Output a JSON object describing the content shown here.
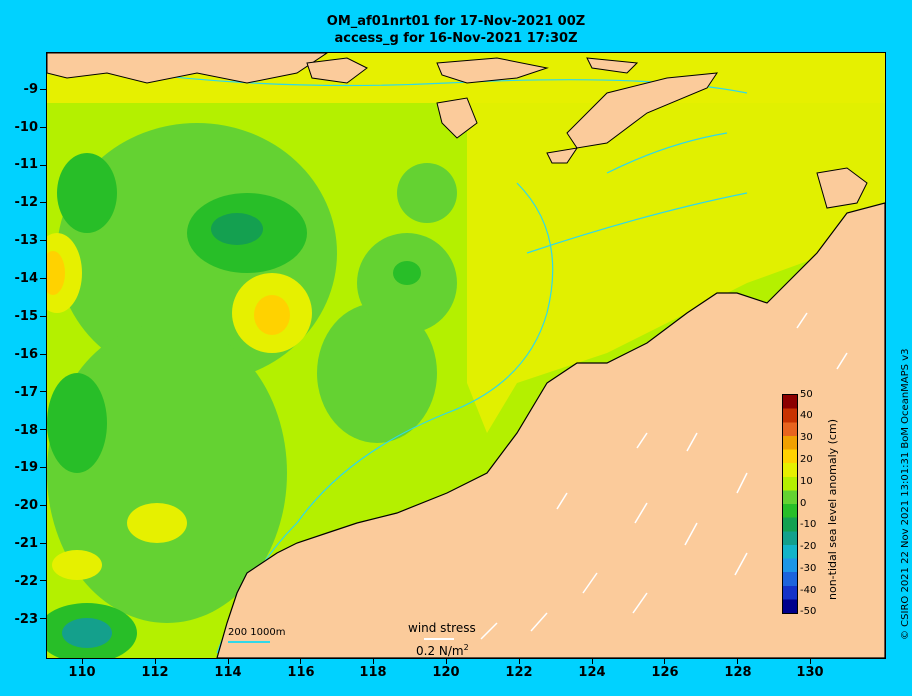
{
  "title_line1": "OM_af01nrt01 for 17-Nov-2021 00Z",
  "title_line2": "access_g for 16-Nov-2021 17:30Z",
  "credit": "© CSIRO 2021  22 Nov 2021 13:01:31 BoM OceanMAPS v3",
  "colorbar": {
    "label": "non-tidal sea level anomaly (cm)",
    "ticks": [
      "50",
      "40",
      "30",
      "20",
      "10",
      "0",
      "-10",
      "-20",
      "-30",
      "-40",
      "-50"
    ],
    "colors": [
      "#8b0000",
      "#c83200",
      "#e8641e",
      "#f0a000",
      "#ffd200",
      "#e6f000",
      "#b4f000",
      "#64d232",
      "#28be28",
      "#14a050",
      "#14a08c",
      "#14b4c8",
      "#1e96e6",
      "#1e64dc",
      "#1432c8",
      "#00008c"
    ]
  },
  "axes": {
    "lat_ticks": [
      "-9",
      "-10",
      "-11",
      "-12",
      "-13",
      "-14",
      "-15",
      "-16",
      "-17",
      "-18",
      "-19",
      "-20",
      "-21",
      "-22",
      "-23"
    ],
    "lon_ticks": [
      "110",
      "112",
      "114",
      "116",
      "118",
      "120",
      "122",
      "124",
      "126",
      "128",
      "130"
    ]
  },
  "depth_legend": "200  1000m",
  "wind_legend": {
    "title": "wind stress",
    "value": "0.2 N/m",
    "superscript": "2"
  },
  "colors": {
    "background": "#00d2ff",
    "land": "#fbcb9b",
    "ocean_base": "#b4f000",
    "contour": "#30d8e8"
  }
}
